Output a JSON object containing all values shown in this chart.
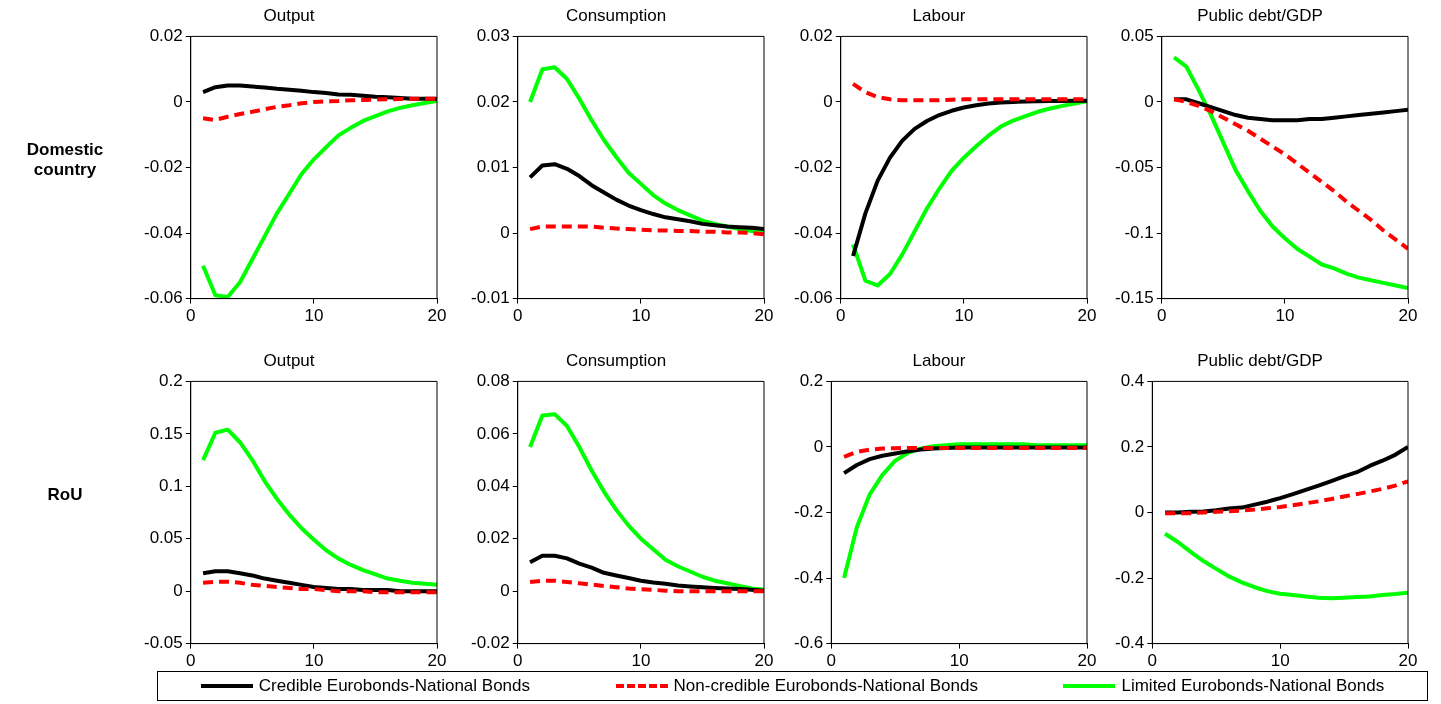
{
  "chart_data": [
    {
      "type": "line",
      "title": "Output",
      "ylabel": "Domestic country",
      "x": [
        1,
        2,
        3,
        4,
        5,
        6,
        7,
        8,
        9,
        10,
        11,
        12,
        13,
        14,
        15,
        16,
        17,
        18,
        19,
        20
      ],
      "xlim": [
        0,
        20
      ],
      "xticks": [
        0,
        10,
        20
      ],
      "ylim": [
        -0.06,
        0.02
      ],
      "yticks": [
        -0.06,
        -0.04,
        -0.02,
        0,
        0.02
      ],
      "grid": false,
      "series": [
        {
          "color": "#000000",
          "line_style": "solid",
          "values": [
            0.003,
            0.0045,
            0.005,
            0.005,
            0.0047,
            0.0044,
            0.004,
            0.0037,
            0.0034,
            0.003,
            0.0027,
            0.0023,
            0.0022,
            0.0019,
            0.0016,
            0.0014,
            0.0012,
            0.001,
            0.001,
            0.001
          ]
        },
        {
          "color": "#ff0000",
          "line_style": "dashed",
          "values": [
            -0.005,
            -0.0055,
            -0.0045,
            -0.0037,
            -0.003,
            -0.0022,
            -0.0015,
            -0.001,
            -0.0004,
            0,
            0.0002,
            0.0003,
            0.0005,
            0.0006,
            0.0007,
            0.0008,
            0.0009,
            0.001,
            0.001,
            0.001
          ]
        },
        {
          "color": "#00ff00",
          "line_style": "solid",
          "values": [
            -0.05,
            -0.059,
            -0.0595,
            -0.055,
            -0.048,
            -0.041,
            -0.034,
            -0.028,
            -0.022,
            -0.0175,
            -0.0138,
            -0.0102,
            -0.0079,
            -0.0058,
            -0.0043,
            -0.0029,
            -0.0018,
            -0.001,
            -0.0003,
            0.0003
          ]
        }
      ]
    },
    {
      "type": "line",
      "title": "Consumption",
      "x": [
        1,
        2,
        3,
        4,
        5,
        6,
        7,
        8,
        9,
        10,
        11,
        12,
        13,
        14,
        15,
        16,
        17,
        18,
        19,
        20
      ],
      "xlim": [
        0,
        20
      ],
      "xticks": [
        0,
        10,
        20
      ],
      "ylim": [
        -0.01,
        0.03
      ],
      "yticks": [
        -0.01,
        0,
        0.01,
        0.02,
        0.03
      ],
      "grid": false,
      "series": [
        {
          "color": "#000000",
          "line_style": "solid",
          "values": [
            0.0085,
            0.0103,
            0.0105,
            0.0098,
            0.0087,
            0.0073,
            0.0062,
            0.0051,
            0.0042,
            0.0035,
            0.0029,
            0.0024,
            0.0021,
            0.0018,
            0.0014,
            0.0012,
            0.001,
            0.0009,
            0.0008,
            0.0006
          ]
        },
        {
          "color": "#ff0000",
          "line_style": "dashed",
          "values": [
            0.0006,
            0.001,
            0.001,
            0.001,
            0.001,
            0.001,
            0.0008,
            0.0007,
            0.0006,
            0.0005,
            0.0004,
            0.0004,
            0.0003,
            0.0003,
            0.0002,
            0.0002,
            0.0001,
            0.0001,
            0,
            -0.0002
          ]
        },
        {
          "color": "#00ff00",
          "line_style": "solid",
          "values": [
            0.02,
            0.025,
            0.0253,
            0.0235,
            0.0205,
            0.0172,
            0.0142,
            0.0116,
            0.0092,
            0.0075,
            0.0058,
            0.0045,
            0.0035,
            0.0027,
            0.0019,
            0.0014,
            0.001,
            0.0006,
            0.0003,
            0.0001
          ]
        }
      ]
    },
    {
      "type": "line",
      "title": "Labour",
      "x": [
        1,
        2,
        3,
        4,
        5,
        6,
        7,
        8,
        9,
        10,
        11,
        12,
        13,
        14,
        15,
        16,
        17,
        18,
        19,
        20
      ],
      "xlim": [
        0,
        20
      ],
      "xticks": [
        0,
        10,
        20
      ],
      "ylim": [
        -0.06,
        0.02
      ],
      "yticks": [
        -0.06,
        -0.04,
        -0.02,
        0,
        0.02
      ],
      "grid": false,
      "series": [
        {
          "color": "#000000",
          "line_style": "solid",
          "values": [
            -0.047,
            -0.034,
            -0.024,
            -0.017,
            -0.0118,
            -0.0082,
            -0.0058,
            -0.004,
            -0.0027,
            -0.0017,
            -0.001,
            -0.0005,
            -0.0002,
            0,
            0.0001,
            0.0002,
            0.0003,
            0.0003,
            0.0004,
            0.0004
          ]
        },
        {
          "color": "#ff0000",
          "line_style": "dashed",
          "values": [
            0.0055,
            0.003,
            0.0015,
            0.0008,
            0.0005,
            0.0005,
            0.0005,
            0.0005,
            0.0007,
            0.0008,
            0.0008,
            0.0008,
            0.0008,
            0.0008,
            0.0008,
            0.0008,
            0.0008,
            0.0008,
            0.0008,
            0.0008
          ]
        },
        {
          "color": "#00ff00",
          "line_style": "solid",
          "values": [
            -0.0435,
            -0.0545,
            -0.056,
            -0.0525,
            -0.0465,
            -0.0395,
            -0.0325,
            -0.0265,
            -0.021,
            -0.017,
            -0.0135,
            -0.0103,
            -0.0075,
            -0.0057,
            -0.0043,
            -0.003,
            -0.002,
            -0.0012,
            -0.0005,
            0.0002
          ]
        }
      ]
    },
    {
      "type": "line",
      "title": "Public debt/GDP",
      "x": [
        1,
        2,
        3,
        4,
        5,
        6,
        7,
        8,
        9,
        10,
        11,
        12,
        13,
        14,
        15,
        16,
        17,
        18,
        19,
        20
      ],
      "xlim": [
        0,
        20
      ],
      "xticks": [
        0,
        10,
        20
      ],
      "ylim": [
        -0.15,
        0.05
      ],
      "yticks": [
        -0.15,
        -0.1,
        -0.05,
        0,
        0.05
      ],
      "grid": false,
      "series": [
        {
          "color": "#000000",
          "line_style": "solid",
          "values": [
            0.002,
            0.002,
            -0.001,
            -0.004,
            -0.007,
            -0.01,
            -0.012,
            -0.013,
            -0.014,
            -0.014,
            -0.014,
            -0.013,
            -0.013,
            -0.012,
            -0.011,
            -0.01,
            -0.009,
            -0.008,
            -0.007,
            -0.006
          ]
        },
        {
          "color": "#ff0000",
          "line_style": "dashed",
          "values": [
            0.002,
            0,
            -0.003,
            -0.007,
            -0.012,
            -0.017,
            -0.022,
            -0.028,
            -0.034,
            -0.04,
            -0.047,
            -0.054,
            -0.061,
            -0.068,
            -0.076,
            -0.083,
            -0.09,
            -0.098,
            -0.105,
            -0.112
          ]
        },
        {
          "color": "#00ff00",
          "line_style": "solid",
          "values": [
            0.034,
            0.027,
            0.009,
            -0.01,
            -0.031,
            -0.052,
            -0.068,
            -0.083,
            -0.095,
            -0.104,
            -0.112,
            -0.118,
            -0.124,
            -0.127,
            -0.131,
            -0.134,
            -0.136,
            -0.138,
            -0.14,
            -0.142
          ]
        }
      ]
    },
    {
      "type": "line",
      "title": "Output",
      "ylabel": "RoU",
      "x": [
        1,
        2,
        3,
        4,
        5,
        6,
        7,
        8,
        9,
        10,
        11,
        12,
        13,
        14,
        15,
        16,
        17,
        18,
        19,
        20
      ],
      "xlim": [
        0,
        20
      ],
      "xticks": [
        0,
        10,
        20
      ],
      "ylim": [
        -0.05,
        0.2
      ],
      "yticks": [
        -0.05,
        0,
        0.05,
        0.1,
        0.15,
        0.2
      ],
      "grid": false,
      "series": [
        {
          "color": "#000000",
          "line_style": "solid",
          "values": [
            0.017,
            0.019,
            0.019,
            0.017,
            0.015,
            0.012,
            0.01,
            0.008,
            0.006,
            0.004,
            0.003,
            0.002,
            0.002,
            0.001,
            0.001,
            0.001,
            0,
            0,
            0,
            0
          ]
        },
        {
          "color": "#ff0000",
          "line_style": "dashed",
          "values": [
            0.008,
            0.009,
            0.009,
            0.008,
            0.006,
            0.005,
            0.004,
            0.003,
            0.002,
            0.002,
            0.001,
            0,
            0,
            0,
            -0.001,
            -0.001,
            -0.001,
            -0.001,
            -0.001,
            -0.001
          ]
        },
        {
          "color": "#00ff00",
          "line_style": "solid",
          "values": [
            0.125,
            0.151,
            0.154,
            0.142,
            0.125,
            0.105,
            0.088,
            0.073,
            0.06,
            0.049,
            0.039,
            0.031,
            0.025,
            0.02,
            0.016,
            0.012,
            0.01,
            0.008,
            0.007,
            0.006
          ]
        }
      ]
    },
    {
      "type": "line",
      "title": "Consumption",
      "x": [
        1,
        2,
        3,
        4,
        5,
        6,
        7,
        8,
        9,
        10,
        11,
        12,
        13,
        14,
        15,
        16,
        17,
        18,
        19,
        20
      ],
      "xlim": [
        0,
        20
      ],
      "xticks": [
        0,
        10,
        20
      ],
      "ylim": [
        -0.02,
        0.08
      ],
      "yticks": [
        -0.02,
        0,
        0.02,
        0.04,
        0.06,
        0.08
      ],
      "grid": false,
      "series": [
        {
          "color": "#000000",
          "line_style": "solid",
          "values": [
            0.011,
            0.0135,
            0.0135,
            0.0125,
            0.0105,
            0.009,
            0.007,
            0.006,
            0.005,
            0.004,
            0.0033,
            0.0028,
            0.0022,
            0.0018,
            0.0015,
            0.0012,
            0.001,
            0.0008,
            0.0005,
            0.0002
          ]
        },
        {
          "color": "#ff0000",
          "line_style": "dashed",
          "values": [
            0.0035,
            0.004,
            0.004,
            0.0035,
            0.003,
            0.0025,
            0.002,
            0.0015,
            0.001,
            0.0007,
            0.0005,
            0.0002,
            0,
            0,
            0,
            0,
            0,
            0,
            0,
            0
          ]
        },
        {
          "color": "#00ff00",
          "line_style": "solid",
          "values": [
            0.055,
            0.067,
            0.0675,
            0.063,
            0.055,
            0.046,
            0.038,
            0.031,
            0.025,
            0.02,
            0.016,
            0.012,
            0.0095,
            0.0075,
            0.0055,
            0.004,
            0.003,
            0.002,
            0.001,
            0.0005
          ]
        }
      ]
    },
    {
      "type": "line",
      "title": "Labour",
      "x": [
        1,
        2,
        3,
        4,
        5,
        6,
        7,
        8,
        9,
        10,
        11,
        12,
        13,
        14,
        15,
        16,
        17,
        18,
        19,
        20
      ],
      "xlim": [
        0,
        20
      ],
      "xticks": [
        0,
        10,
        20
      ],
      "ylim": [
        -0.6,
        0.2
      ],
      "yticks": [
        -0.6,
        -0.4,
        -0.2,
        0,
        0.2
      ],
      "grid": false,
      "series": [
        {
          "color": "#000000",
          "line_style": "solid",
          "values": [
            -0.08,
            -0.055,
            -0.037,
            -0.027,
            -0.02,
            -0.013,
            -0.008,
            -0.005,
            -0.003,
            -0.002,
            -0.002,
            -0.002,
            -0.002,
            -0.002,
            -0.002,
            -0.002,
            -0.002,
            -0.002,
            -0.002,
            -0.002
          ]
        },
        {
          "color": "#ff0000",
          "line_style": "dashed",
          "values": [
            -0.03,
            -0.015,
            -0.008,
            -0.005,
            -0.004,
            -0.003,
            -0.003,
            -0.003,
            -0.003,
            -0.003,
            -0.003,
            -0.003,
            -0.003,
            -0.003,
            -0.003,
            -0.003,
            -0.003,
            -0.003,
            -0.003,
            -0.003
          ]
        },
        {
          "color": "#00ff00",
          "line_style": "solid",
          "values": [
            -0.4,
            -0.245,
            -0.145,
            -0.085,
            -0.042,
            -0.018,
            -0.005,
            0.002,
            0.005,
            0.008,
            0.008,
            0.008,
            0.008,
            0.008,
            0.008,
            0.005,
            0.005,
            0.005,
            0.005,
            0.005
          ]
        }
      ]
    },
    {
      "type": "line",
      "title": "Public debt/GDP",
      "x": [
        1,
        2,
        3,
        4,
        5,
        6,
        7,
        8,
        9,
        10,
        11,
        12,
        13,
        14,
        15,
        16,
        17,
        18,
        19,
        20
      ],
      "xlim": [
        0,
        20
      ],
      "xticks": [
        0,
        10,
        20
      ],
      "ylim": [
        -0.4,
        0.4
      ],
      "yticks": [
        -0.4,
        -0.2,
        0,
        0.2,
        0.4
      ],
      "grid": false,
      "legend": "bottom",
      "series": [
        {
          "name": "Credible Eurobonds-National Bonds",
          "color": "#000000",
          "line_style": "solid",
          "values": [
            0,
            0,
            0.002,
            0.003,
            0.007,
            0.012,
            0.015,
            0.024,
            0.033,
            0.044,
            0.056,
            0.069,
            0.082,
            0.096,
            0.11,
            0.123,
            0.142,
            0.158,
            0.176,
            0.2
          ]
        },
        {
          "name": "Non-credible Eurobonds-National Bonds",
          "color": "#ff0000",
          "line_style": "dashed",
          "values": [
            -0.002,
            -0.002,
            -0.002,
            0,
            0.002,
            0.004,
            0.006,
            0.009,
            0.013,
            0.017,
            0.022,
            0.028,
            0.034,
            0.041,
            0.049,
            0.056,
            0.064,
            0.072,
            0.082,
            0.095
          ]
        },
        {
          "name": "Limited Eurobonds-National Bonds",
          "color": "#00ff00",
          "line_style": "solid",
          "values": [
            -0.065,
            -0.09,
            -0.12,
            -0.148,
            -0.172,
            -0.195,
            -0.213,
            -0.228,
            -0.24,
            -0.248,
            -0.252,
            -0.256,
            -0.26,
            -0.262,
            -0.26,
            -0.258,
            -0.256,
            -0.252,
            -0.249,
            -0.245
          ]
        }
      ]
    }
  ]
}
